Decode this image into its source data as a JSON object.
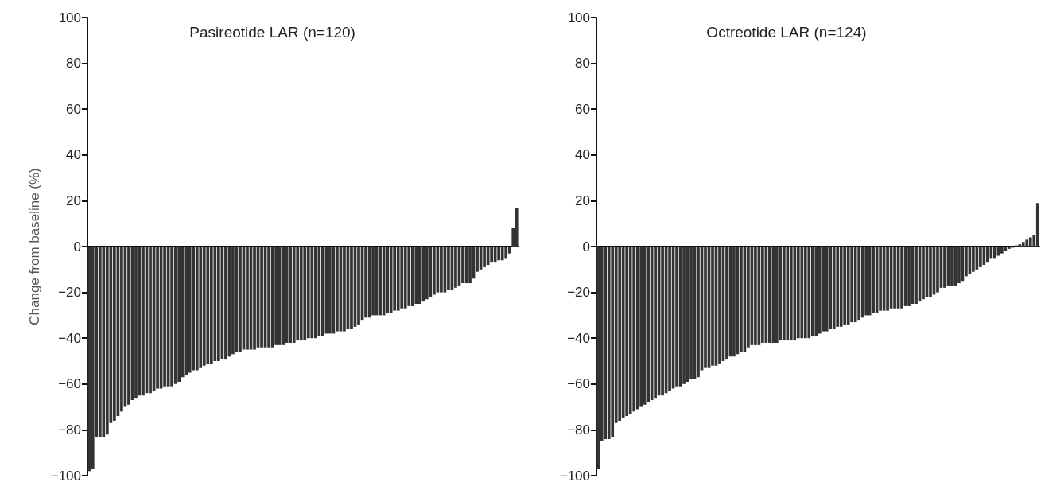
{
  "chart_data": [
    {
      "type": "bar",
      "title": "Pasireotide LAR (n=120)",
      "ylabel": "Change from baseline (%)",
      "color": "#333333",
      "ylim": [
        -100,
        100
      ],
      "yticks": [
        -100,
        -80,
        -60,
        -40,
        -20,
        0,
        20,
        40,
        60,
        80,
        100
      ],
      "tick_labels": "y",
      "categories": [
        null,
        null,
        null,
        null,
        null,
        null,
        null,
        null,
        null,
        null,
        null,
        null,
        null,
        null,
        null,
        null,
        null,
        null,
        null,
        null,
        null,
        null,
        null,
        null,
        null,
        null,
        null,
        null,
        null,
        null,
        null,
        null,
        null,
        null,
        null,
        null,
        null,
        null,
        null,
        null,
        null,
        null,
        null,
        null,
        null,
        null,
        null,
        null,
        null,
        null,
        null,
        null,
        null,
        null,
        null,
        null,
        null,
        null,
        null,
        null,
        null,
        null,
        null,
        null,
        null,
        null,
        null,
        null,
        null,
        null,
        null,
        null,
        null,
        null,
        null,
        null,
        null,
        null,
        null,
        null,
        null,
        null,
        null,
        null,
        null,
        null,
        null,
        null,
        null,
        null,
        null,
        null,
        null,
        null,
        null,
        null,
        null,
        null,
        null,
        null,
        null,
        null,
        null,
        null,
        null,
        null,
        null,
        null,
        null,
        null,
        null,
        null,
        null,
        null,
        null,
        null,
        null,
        null,
        null,
        null
      ],
      "values": [
        -98,
        -97,
        -83,
        -83,
        -83,
        -82,
        -77,
        -76,
        -74,
        -72,
        -70,
        -69,
        -67,
        -66,
        -65,
        -65,
        -64,
        -64,
        -63,
        -62,
        -62,
        -61,
        -61,
        -61,
        -60,
        -59,
        -57,
        -56,
        -55,
        -54,
        -54,
        -53,
        -52,
        -51,
        -51,
        -50,
        -50,
        -49,
        -49,
        -48,
        -47,
        -46,
        -46,
        -45,
        -45,
        -45,
        -45,
        -44,
        -44,
        -44,
        -44,
        -44,
        -43,
        -43,
        -43,
        -42,
        -42,
        -42,
        -41,
        -41,
        -41,
        -40,
        -40,
        -40,
        -39,
        -39,
        -38,
        -38,
        -38,
        -37,
        -37,
        -37,
        -36,
        -36,
        -35,
        -34,
        -32,
        -31,
        -31,
        -30,
        -30,
        -30,
        -30,
        -29,
        -29,
        -28,
        -28,
        -27,
        -27,
        -26,
        -26,
        -25,
        -25,
        -24,
        -23,
        -22,
        -21,
        -20,
        -20,
        -20,
        -19,
        -19,
        -18,
        -17,
        -16,
        -16,
        -16,
        -14,
        -11,
        -10,
        -9,
        -8,
        -7,
        -7,
        -6,
        -6,
        -5,
        -3,
        8,
        17
      ]
    },
    {
      "type": "bar",
      "title": "Octreotide LAR (n=124)",
      "color": "#333333",
      "ylim": [
        -100,
        100
      ],
      "yticks": [
        -100,
        -80,
        -60,
        -40,
        -20,
        0,
        20,
        40,
        60,
        80,
        100
      ],
      "tick_labels": "y",
      "categories": [
        null,
        null,
        null,
        null,
        null,
        null,
        null,
        null,
        null,
        null,
        null,
        null,
        null,
        null,
        null,
        null,
        null,
        null,
        null,
        null,
        null,
        null,
        null,
        null,
        null,
        null,
        null,
        null,
        null,
        null,
        null,
        null,
        null,
        null,
        null,
        null,
        null,
        null,
        null,
        null,
        null,
        null,
        null,
        null,
        null,
        null,
        null,
        null,
        null,
        null,
        null,
        null,
        null,
        null,
        null,
        null,
        null,
        null,
        null,
        null,
        null,
        null,
        null,
        null,
        null,
        null,
        null,
        null,
        null,
        null,
        null,
        null,
        null,
        null,
        null,
        null,
        null,
        null,
        null,
        null,
        null,
        null,
        null,
        null,
        null,
        null,
        null,
        null,
        null,
        null,
        null,
        null,
        null,
        null,
        null,
        null,
        null,
        null,
        null,
        null,
        null,
        null,
        null,
        null,
        null,
        null,
        null,
        null,
        null,
        null,
        null,
        null,
        null,
        null,
        null,
        null,
        null,
        null,
        null,
        null,
        null,
        null,
        null,
        null
      ],
      "values": [
        -97,
        -85,
        -84,
        -84,
        -83,
        -77,
        -76,
        -75,
        -74,
        -73,
        -72,
        -71,
        -70,
        -69,
        -68,
        -67,
        -66,
        -65,
        -65,
        -64,
        -63,
        -62,
        -61,
        -61,
        -60,
        -59,
        -58,
        -58,
        -57,
        -54,
        -53,
        -53,
        -52,
        -52,
        -51,
        -50,
        -49,
        -48,
        -48,
        -47,
        -46,
        -46,
        -44,
        -43,
        -43,
        -43,
        -42,
        -42,
        -42,
        -42,
        -42,
        -41,
        -41,
        -41,
        -41,
        -41,
        -40,
        -40,
        -40,
        -40,
        -39,
        -39,
        -38,
        -37,
        -37,
        -36,
        -36,
        -35,
        -35,
        -34,
        -34,
        -33,
        -33,
        -32,
        -31,
        -30,
        -30,
        -29,
        -29,
        -28,
        -28,
        -28,
        -27,
        -27,
        -27,
        -27,
        -26,
        -26,
        -25,
        -25,
        -24,
        -23,
        -22,
        -22,
        -21,
        -20,
        -18,
        -18,
        -17,
        -17,
        -17,
        -16,
        -15,
        -13,
        -12,
        -11,
        -10,
        -9,
        -8,
        -7,
        -5,
        -5,
        -4,
        -3,
        -2,
        -1,
        -0.5,
        0.5,
        1,
        2,
        3,
        4,
        5,
        19
      ]
    }
  ]
}
